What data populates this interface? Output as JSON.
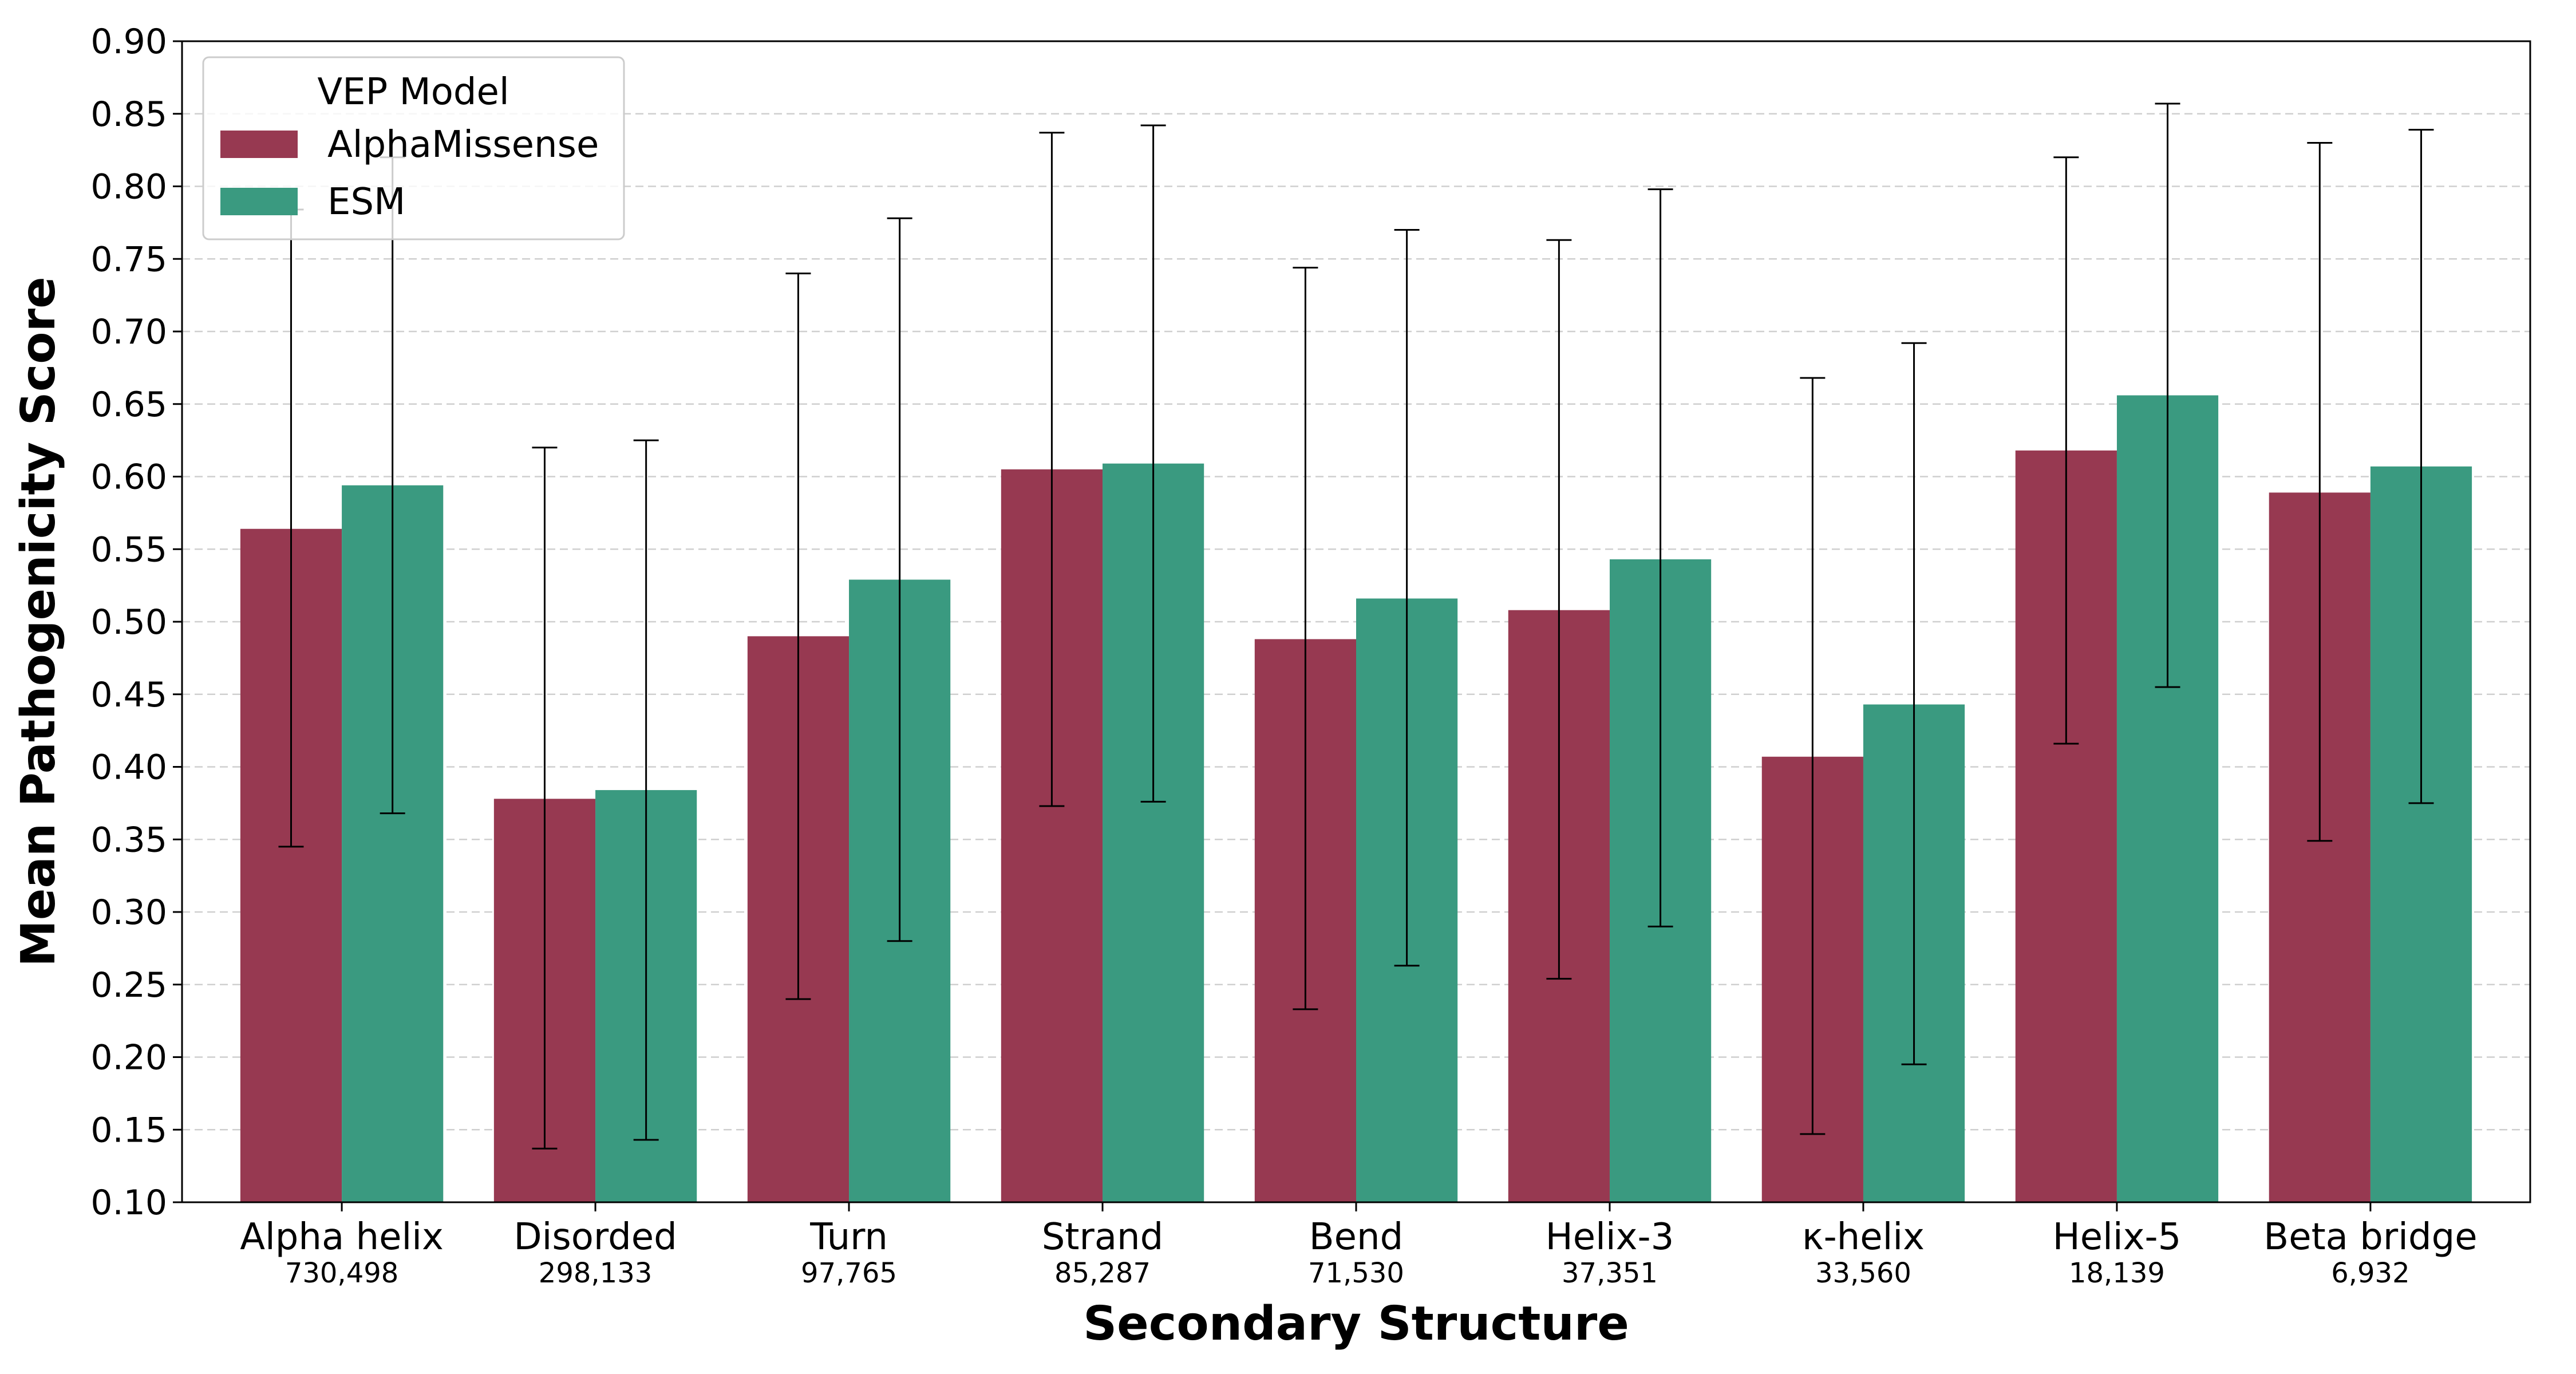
{
  "chart_data": {
    "type": "bar",
    "title": "",
    "xlabel": "Secondary Structure",
    "ylabel": "Mean Pathogenicity Score",
    "ylim": [
      0.1,
      0.9
    ],
    "yticks": [
      "0.10",
      "0.15",
      "0.20",
      "0.25",
      "0.30",
      "0.35",
      "0.40",
      "0.45",
      "0.50",
      "0.55",
      "0.60",
      "0.65",
      "0.70",
      "0.75",
      "0.80",
      "0.85",
      "0.90"
    ],
    "grid": "horizontal dashed",
    "legend": {
      "title": "VEP Model",
      "placement": "top-left"
    },
    "categories": [
      "Alpha helix",
      "Disorded",
      "Turn",
      "Strand",
      "Bend",
      "Helix-3",
      "κ-helix",
      "Helix-5",
      "Beta bridge"
    ],
    "counts": [
      "730,498",
      "298,133",
      "97,765",
      "85,287",
      "71,530",
      "37,351",
      "33,560",
      "18,139",
      "6,932"
    ],
    "series": [
      {
        "name": "AlphaMissense",
        "color": "#973951",
        "values": [
          0.564,
          0.378,
          0.49,
          0.605,
          0.488,
          0.508,
          0.407,
          0.618,
          0.589
        ],
        "error_low": [
          0.345,
          0.137,
          0.24,
          0.373,
          0.233,
          0.254,
          0.147,
          0.416,
          0.349
        ],
        "error_high": [
          0.784,
          0.62,
          0.74,
          0.837,
          0.744,
          0.763,
          0.668,
          0.82,
          0.83
        ]
      },
      {
        "name": "ESM",
        "color": "#3a9a80",
        "values": [
          0.594,
          0.384,
          0.529,
          0.609,
          0.516,
          0.543,
          0.443,
          0.656,
          0.607
        ],
        "error_low": [
          0.368,
          0.143,
          0.28,
          0.376,
          0.263,
          0.29,
          0.195,
          0.455,
          0.375
        ],
        "error_high": [
          0.82,
          0.625,
          0.778,
          0.842,
          0.77,
          0.798,
          0.692,
          0.857,
          0.839
        ]
      }
    ]
  }
}
